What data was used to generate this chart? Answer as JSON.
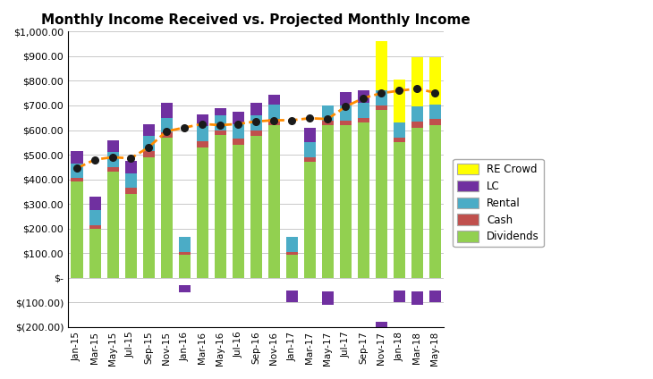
{
  "title": "Monthly Income Received vs. Projected Monthly Income",
  "categories": [
    "Jan-15",
    "Mar-15",
    "May-15",
    "Jul-15",
    "Sep-15",
    "Nov-15",
    "Jan-16",
    "Mar-16",
    "May-16",
    "Jul-16",
    "Sep-16",
    "Nov-16",
    "Jan-17",
    "Mar-17",
    "May-17",
    "Jul-17",
    "Sep-17",
    "Nov-17",
    "Jan-18",
    "Mar-18",
    "May-18"
  ],
  "dividends": [
    390,
    200,
    430,
    340,
    490,
    570,
    95,
    530,
    580,
    540,
    575,
    620,
    95,
    470,
    620,
    620,
    630,
    680,
    550,
    610,
    620
  ],
  "cash": [
    15,
    15,
    20,
    25,
    25,
    20,
    10,
    25,
    20,
    25,
    25,
    25,
    10,
    20,
    20,
    20,
    20,
    20,
    20,
    25,
    25
  ],
  "rental": [
    60,
    60,
    60,
    60,
    60,
    60,
    60,
    60,
    60,
    60,
    60,
    60,
    60,
    60,
    60,
    60,
    60,
    60,
    60,
    60,
    60
  ],
  "lc_positive": [
    50,
    55,
    50,
    50,
    50,
    60,
    0,
    50,
    30,
    50,
    50,
    40,
    0,
    60,
    0,
    55,
    50,
    0,
    0,
    0,
    0
  ],
  "lc_negative": [
    0,
    0,
    0,
    0,
    0,
    0,
    30,
    0,
    0,
    0,
    0,
    0,
    50,
    0,
    55,
    0,
    0,
    180,
    50,
    55,
    50
  ],
  "re_crowd": [
    0,
    0,
    0,
    0,
    0,
    0,
    0,
    0,
    0,
    0,
    0,
    0,
    0,
    0,
    0,
    0,
    0,
    200,
    175,
    200,
    190
  ],
  "projected": [
    445,
    480,
    490,
    485,
    530,
    595,
    610,
    625,
    620,
    625,
    635,
    640,
    640,
    648,
    645,
    695,
    730,
    750,
    760,
    768,
    752
  ],
  "colors": {
    "dividends": "#92D050",
    "cash": "#C0504D",
    "rental": "#4BACC6",
    "lc": "#7030A0",
    "re_crowd": "#FFFF00",
    "projected_line": "#FF8C00",
    "projected_dots": "#1A1A1A"
  },
  "ylim": [
    -200,
    1000
  ],
  "yticks": [
    -200,
    -100,
    0,
    100,
    200,
    300,
    400,
    500,
    600,
    700,
    800,
    900,
    1000
  ],
  "ytick_labels": [
    "$(200.00)",
    "$(100.00)",
    "$-",
    "$100.00",
    "$200.00",
    "$300.00",
    "$400.00",
    "$500.00",
    "$600.00",
    "$700.00",
    "$800.00",
    "$900.00",
    "$1,000.00"
  ]
}
